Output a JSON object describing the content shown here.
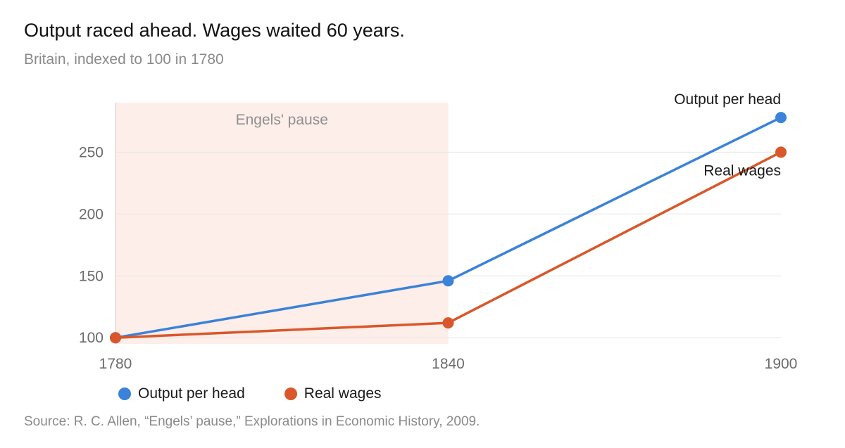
{
  "header": {
    "title": "Output raced ahead. Wages waited 60 years.",
    "subtitle": "Britain, indexed to 100 in 1780"
  },
  "chart_data": {
    "type": "line",
    "x": [
      1780,
      1840,
      1900
    ],
    "series": [
      {
        "name": "Output per head",
        "values": [
          100,
          146,
          278
        ],
        "color": "#3b82d9"
      },
      {
        "name": "Real wages",
        "values": [
          100,
          112,
          250
        ],
        "color": "#d9572a"
      }
    ],
    "xlim": [
      1780,
      1900
    ],
    "ylim": [
      95,
      290
    ],
    "x_ticks": [
      "1780",
      "1840",
      "1900"
    ],
    "y_ticks": [
      "100",
      "150",
      "200",
      "250"
    ],
    "grid": "horizontal",
    "shaded_region": {
      "from": 1780,
      "to": 1840,
      "label": "Engels' pause",
      "color": "#fdeeea"
    },
    "end_labels": [
      "Output per head",
      "Real wages"
    ],
    "legend": {
      "placement": "bottom-left",
      "items": [
        "Output per head",
        "Real wages"
      ]
    }
  },
  "footer": {
    "source": "Source: R. C. Allen, “Engels’ pause,” Explorations in Economic History, 2009."
  }
}
